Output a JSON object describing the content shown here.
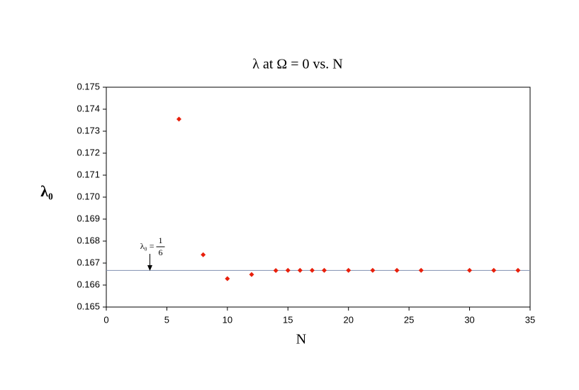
{
  "chart_data": {
    "type": "scatter",
    "title": "λ at Ω = 0  vs.  N",
    "xlabel": "N",
    "ylabel": "λ₀",
    "x": [
      6,
      8,
      10,
      12,
      14,
      15,
      16,
      17,
      18,
      20,
      22,
      24,
      26,
      30,
      32,
      34
    ],
    "values": [
      0.17355,
      0.16738,
      0.16629,
      0.16648,
      0.16666,
      0.16667,
      0.16667,
      0.16667,
      0.16667,
      0.16667,
      0.16667,
      0.16667,
      0.16667,
      0.16667,
      0.16667,
      0.16667
    ],
    "color": "#e8200c",
    "xlim": [
      0,
      35
    ],
    "xticks": [
      0,
      5,
      10,
      15,
      20,
      25,
      30,
      35
    ],
    "ylim": [
      0.165,
      0.175
    ],
    "yticks": [
      0.165,
      0.166,
      0.167,
      0.168,
      0.169,
      {
        "value": 0.17,
        "label": "0.170"
      },
      0.171,
      0.172,
      0.173,
      0.174,
      0.175
    ],
    "reference_line": {
      "value": 0.166667,
      "color": "#8090b0"
    },
    "annotation": {
      "lhs": "λ₀ =",
      "numerator": "1",
      "denominator": "6",
      "x": 3.6
    }
  }
}
